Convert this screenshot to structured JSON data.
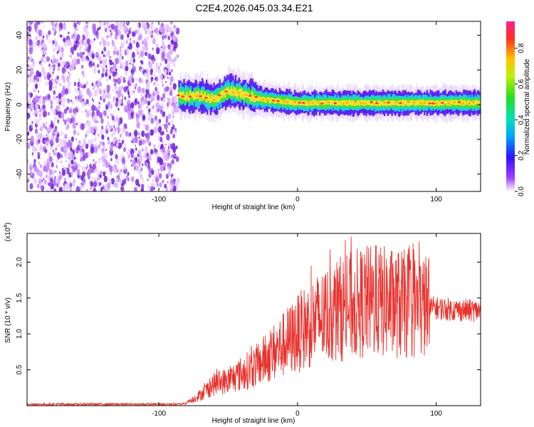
{
  "title": "C2E4.2026.045.03.34.E21",
  "chart_data": [
    {
      "type": "heatmap",
      "xlabel": "Height of straight line (km)",
      "ylabel": "Frequency (Hz)",
      "xlim": [
        -195,
        132
      ],
      "ylim": [
        -50,
        48
      ],
      "x_ticks": [
        "-100",
        "0",
        "100"
      ],
      "y_ticks": [
        "-40",
        "-20",
        "0",
        "20",
        "40"
      ],
      "colorbar": {
        "label": "Normalized spectral amplitude",
        "range": [
          0,
          0.95
        ],
        "ticks": [
          "0.0",
          "0.2",
          "0.4",
          "0.6",
          "0.8"
        ]
      },
      "regions": [
        {
          "name": "noise",
          "x_range": [
            -195,
            -86
          ],
          "y_range": [
            -50,
            48
          ],
          "amplitude": "0.0-0.2"
        },
        {
          "name": "signal-band",
          "x_range": [
            -86,
            132
          ],
          "center_freq": [
            5,
            5,
            3,
            8,
            6,
            3,
            1,
            1,
            1,
            1
          ],
          "center_x": [
            -86,
            -70,
            -60,
            -50,
            -40,
            -25,
            0,
            40,
            80,
            132
          ],
          "amplitude": "0.2-0.95"
        }
      ],
      "grid": false
    },
    {
      "type": "line",
      "xlabel": "Height of straight line (km)",
      "ylabel": "SNR (10 * v/v)",
      "yscale_label": "(x10⁴)",
      "xlim": [
        -195,
        132
      ],
      "ylim": [
        0,
        24000
      ],
      "x_ticks": [
        "-100",
        "0",
        "100"
      ],
      "y_ticks": [
        "0.5",
        "1.0",
        "1.5",
        "2.0"
      ],
      "series": [
        {
          "color": "#e8322d",
          "envelope_x": [
            -195,
            -85,
            -80,
            -70,
            -60,
            -50,
            -40,
            -30,
            -20,
            -10,
            0,
            10,
            20,
            30,
            40,
            50,
            60,
            70,
            80,
            90,
            100,
            110,
            120,
            132
          ],
          "envelope_y": [
            200,
            200,
            400,
            1500,
            3000,
            3500,
            4500,
            5500,
            7000,
            8500,
            10000,
            11500,
            12500,
            13500,
            14000,
            14500,
            14500,
            14200,
            14000,
            13800,
            13600,
            13400,
            13300,
            13200
          ]
        }
      ],
      "grid": false
    }
  ]
}
